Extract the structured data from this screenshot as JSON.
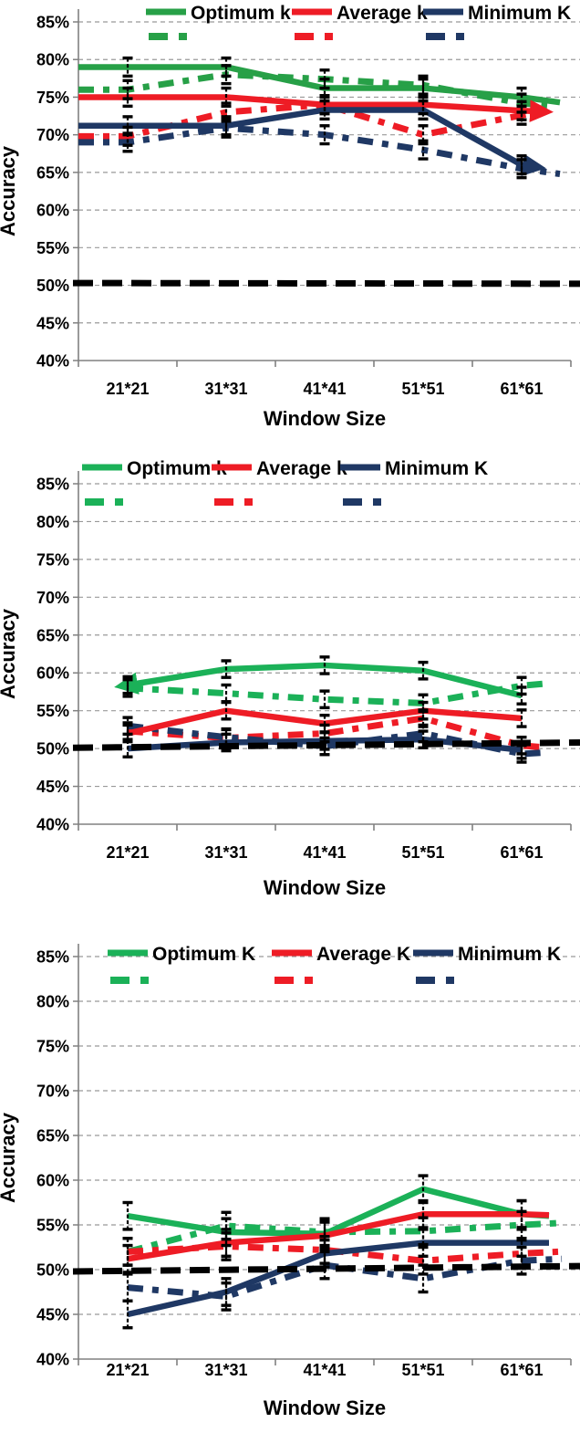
{
  "figure": {
    "background": "#ffffff",
    "grid_color": "#999999",
    "axis_color": "#808080",
    "error_bar_color": "#000000",
    "baseline_color": "#000000"
  },
  "chart_data": [
    {
      "type": "line",
      "title": "",
      "xlabel": "Window Size",
      "ylabel": "Accuracy",
      "categories": [
        "21*21",
        "31*31",
        "41*41",
        "51*51",
        "61*61"
      ],
      "ylim": [
        40,
        85
      ],
      "ytick_step": 5,
      "y_tick_labels": [
        "85%",
        "80%",
        "75%",
        "70%",
        "65%",
        "60%",
        "55%",
        "50%",
        "45%",
        "40%"
      ],
      "grid": true,
      "legend_position": "top",
      "legend": [
        {
          "label": "Optimum k",
          "color": "#27A047"
        },
        {
          "label": "Average k",
          "color": "#EE1C25"
        },
        {
          "label": "Minimum K",
          "color": "#1F3864"
        }
      ],
      "error_bar_half_pct": 1.2,
      "baseline": {
        "start_value": 50.3,
        "end_value": 50.2,
        "style": "dashed-black"
      },
      "series": [
        {
          "name": "Optimum k (dashed)",
          "style": "dashed",
          "color": "#27A047",
          "values": [
            76,
            78,
            77.4,
            76.6,
            74.2
          ],
          "extend_left": true,
          "right_ext": [
            600,
            73.9
          ]
        },
        {
          "name": "Average k (dashed)",
          "style": "dashed",
          "color": "#EE1C25",
          "values": [
            69.8,
            73,
            74,
            70,
            72.6
          ],
          "extend_left": true,
          "right_ext": [
            596,
            73.2
          ]
        },
        {
          "name": "Minimum K (dashed)",
          "style": "dashed",
          "color": "#1F3864",
          "values": [
            69,
            70.9,
            70,
            68,
            65.5
          ],
          "extend_left": true,
          "right_ext": [
            614,
            64.8
          ]
        },
        {
          "name": "Optimum k",
          "style": "solid",
          "color": "#27A047",
          "values": [
            79,
            79,
            76.2,
            76.2,
            75
          ],
          "extend_left": true,
          "right_ext": [
            614,
            74.3
          ]
        },
        {
          "name": "Average k",
          "style": "solid",
          "color": "#EE1C25",
          "values": [
            75,
            75,
            74,
            74,
            73.2
          ],
          "extend_left": true,
          "right_ext": [
            592,
            73.1
          ],
          "arrow_end": true
        },
        {
          "name": "Minimum K",
          "style": "solid",
          "color": "#1F3864",
          "values": [
            71.2,
            71.2,
            73.3,
            73.3,
            66
          ],
          "extend_left": true,
          "right_ext": [
            584,
            65.8
          ],
          "arrow_end": true
        }
      ]
    },
    {
      "type": "line",
      "title": "",
      "xlabel": "Window Size",
      "ylabel": "Accuracy",
      "categories": [
        "21*21",
        "31*31",
        "41*41",
        "51*51",
        "61*61"
      ],
      "ylim": [
        40,
        85
      ],
      "ytick_step": 5,
      "y_tick_labels": [
        "85%",
        "80%",
        "75%",
        "70%",
        "65%",
        "60%",
        "55%",
        "50%",
        "45%",
        "40%"
      ],
      "grid": true,
      "legend_position": "top",
      "legend": [
        {
          "label": "Optimum k",
          "color": "#1BB158"
        },
        {
          "label": "Average k",
          "color": "#EE1C25"
        },
        {
          "label": "Minimum K",
          "color": "#1F3864"
        }
      ],
      "error_bar_half_pct": 1.1,
      "baseline": {
        "start_value": 50.1,
        "end_value": 50.8,
        "style": "dashed-black"
      },
      "series": [
        {
          "name": "Optimum k (dashed)",
          "style": "dashed",
          "color": "#1BB158",
          "values": [
            58,
            57.3,
            56.5,
            56,
            58.3
          ],
          "right_ext": [
            600,
            58.6
          ]
        },
        {
          "name": "Average k (dashed)",
          "style": "dashed",
          "color": "#EE1C25",
          "values": [
            52.3,
            51.4,
            52,
            54,
            50.4
          ],
          "right_ext": [
            592,
            50.2
          ]
        },
        {
          "name": "Minimum K (dashed)",
          "style": "dashed",
          "color": "#1F3864",
          "values": [
            53,
            51.5,
            50.3,
            52,
            49.3
          ],
          "right_ext": [
            600,
            49.5
          ]
        },
        {
          "name": "Optimum k",
          "style": "solid",
          "color": "#1BB158",
          "values": [
            58.4,
            60.5,
            61,
            60.3,
            57
          ],
          "arrow_start": true
        },
        {
          "name": "Average k",
          "style": "solid",
          "color": "#EE1C25",
          "values": [
            52,
            55,
            53.3,
            55,
            54
          ]
        },
        {
          "name": "Minimum K",
          "style": "solid",
          "color": "#1F3864",
          "values": [
            50,
            50.8,
            51,
            51.2,
            49.8
          ]
        }
      ]
    },
    {
      "type": "line",
      "title": "",
      "xlabel": "Window Size",
      "ylabel": "Accuracy",
      "categories": [
        "21*21",
        "31*31",
        "41*41",
        "51*51",
        "61*61"
      ],
      "ylim": [
        40,
        85
      ],
      "ytick_step": 5,
      "y_tick_labels": [
        "85%",
        "80%",
        "75%",
        "70%",
        "65%",
        "60%",
        "55%",
        "50%",
        "45%",
        "40%"
      ],
      "grid": true,
      "legend_position": "top",
      "legend": [
        {
          "label": "Optimum K",
          "color": "#1BB158"
        },
        {
          "label": "Average K",
          "color": "#EE1C25"
        },
        {
          "label": "Minimum K",
          "color": "#1F3864"
        }
      ],
      "error_bar_half_pct": 1.5,
      "baseline": {
        "start_value": 49.8,
        "end_value": 50.4,
        "style": "dashed-black"
      },
      "series": [
        {
          "name": "Optimum K (dashed)",
          "style": "dashed",
          "color": "#1BB158",
          "values": [
            52,
            54.9,
            54.2,
            54.3,
            55
          ],
          "right_ext": [
            612,
            55.2
          ]
        },
        {
          "name": "Average K (dashed)",
          "style": "dashed",
          "color": "#EE1C25",
          "values": [
            52,
            52.6,
            52.2,
            51,
            51.8
          ],
          "right_ext": [
            612,
            52
          ]
        },
        {
          "name": "Minimum K (dashed)",
          "style": "dashed",
          "color": "#1F3864",
          "values": [
            48,
            47,
            50.5,
            49,
            51
          ],
          "right_ext": [
            616,
            51.2
          ]
        },
        {
          "name": "Optimum K",
          "style": "solid",
          "color": "#1BB158",
          "values": [
            56,
            54.2,
            54,
            59,
            56.2
          ],
          "right_ext": [
            602,
            56
          ]
        },
        {
          "name": "Average K",
          "style": "solid",
          "color": "#EE1C25",
          "values": [
            51.2,
            53,
            53.8,
            56.2,
            56.2
          ],
          "right_ext": [
            602,
            56.1
          ]
        },
        {
          "name": "Minimum K",
          "style": "solid",
          "color": "#1F3864",
          "values": [
            45,
            47.5,
            51.8,
            53,
            53
          ],
          "right_ext": [
            602,
            53
          ]
        }
      ]
    }
  ]
}
